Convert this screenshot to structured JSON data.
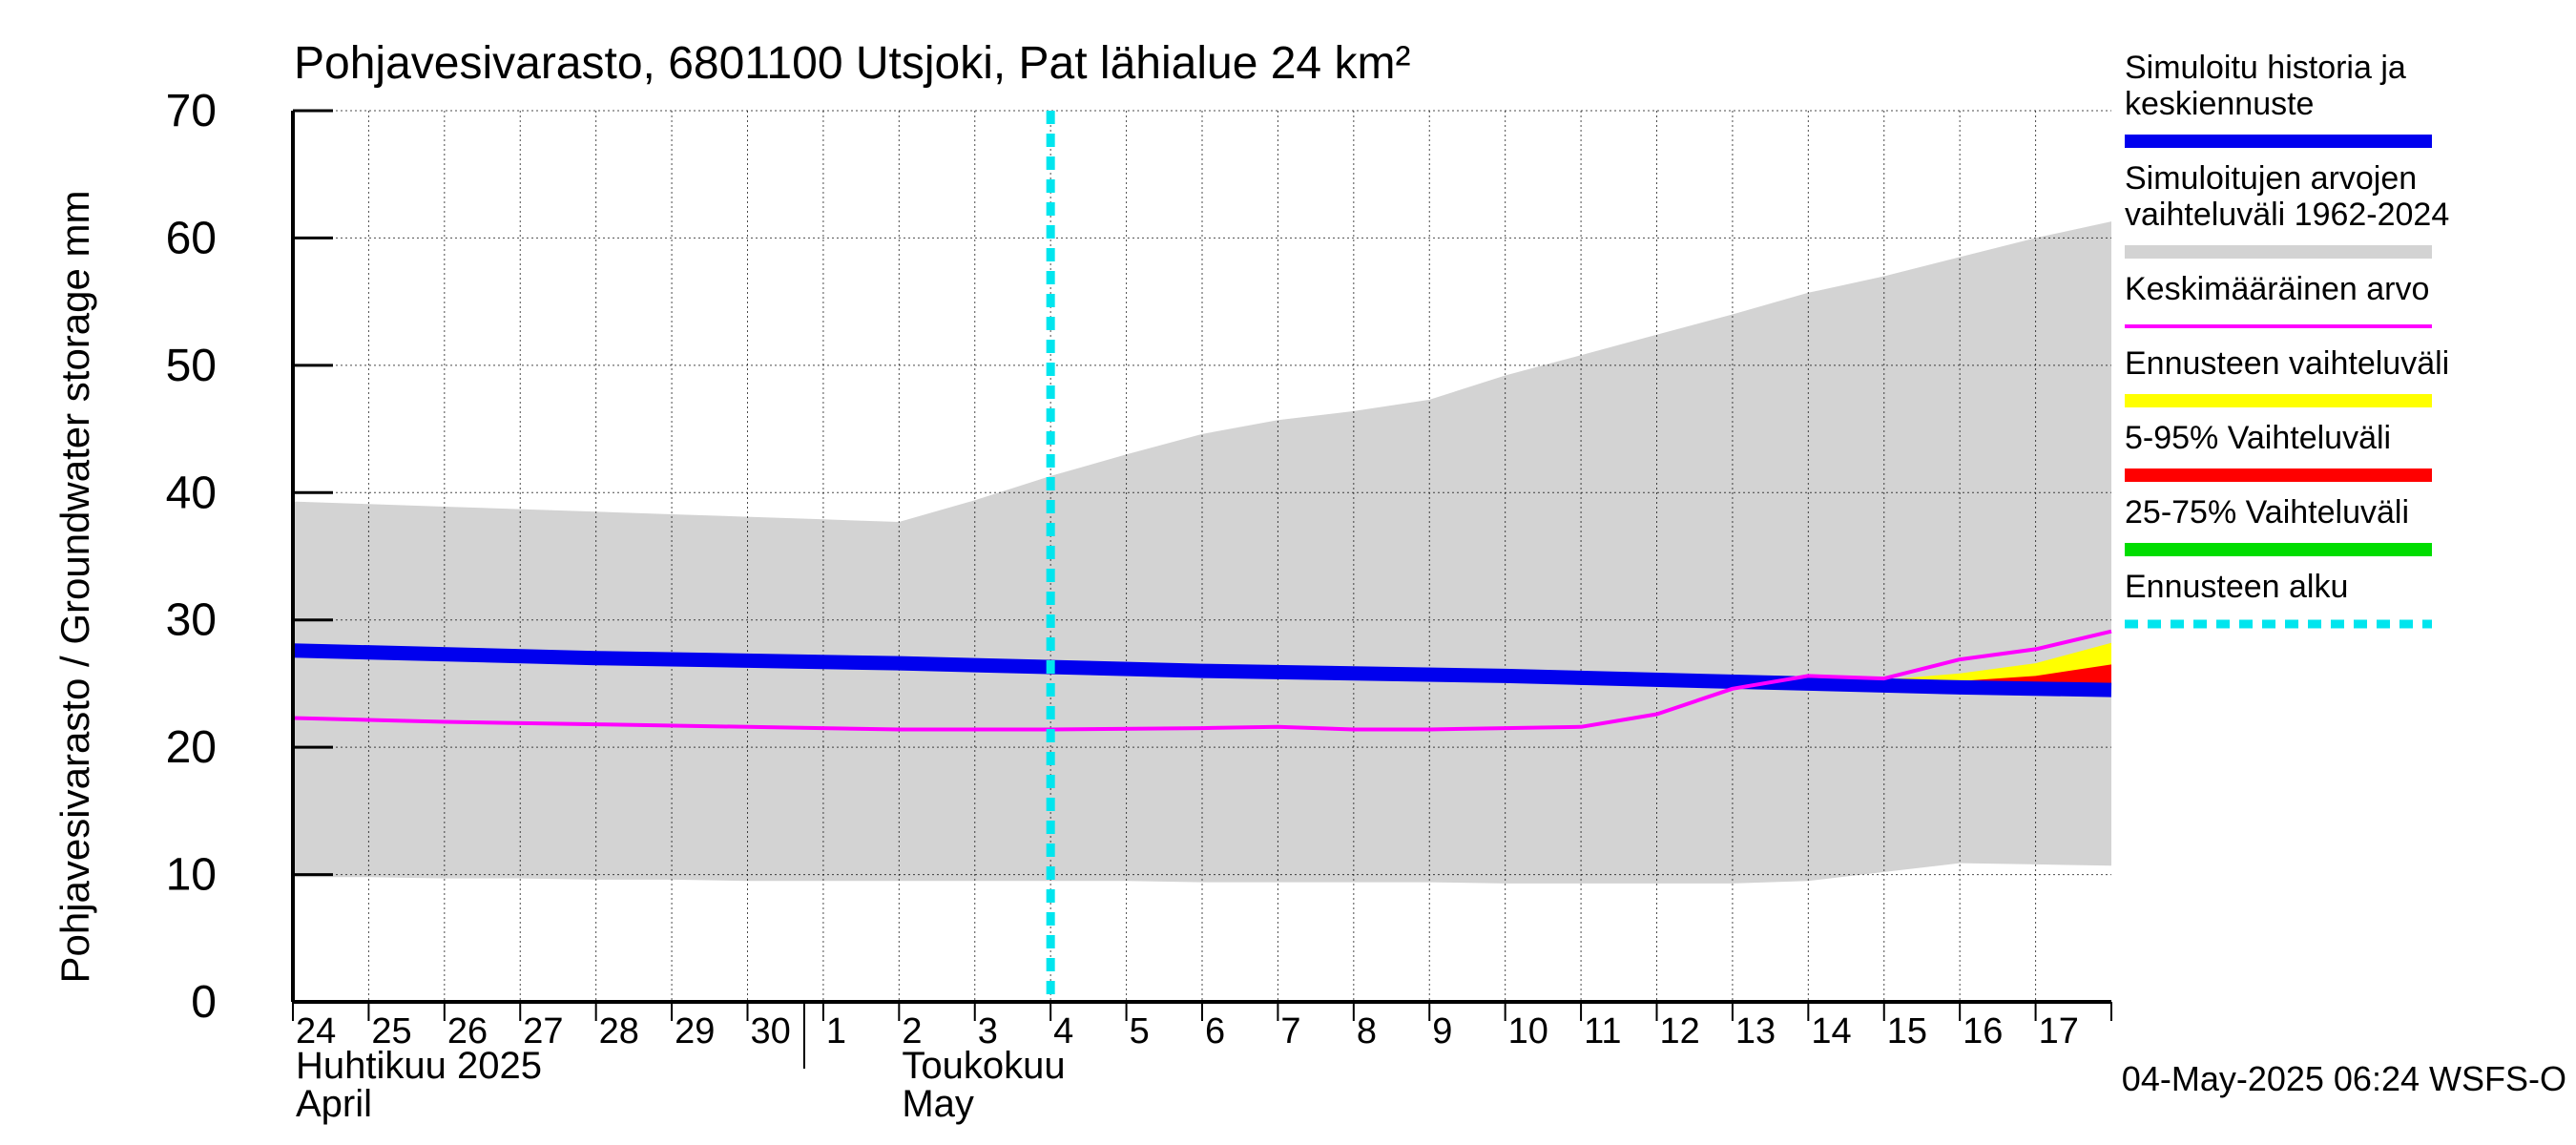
{
  "chart_data": {
    "type": "area",
    "title": "Pohjavesivarasto, 6801100 Utsjoki, Pat lähialue 24 km²",
    "ylabel": "Pohjavesivarasto / Groundwater storage   mm",
    "ylim": [
      0,
      70
    ],
    "yticks": [
      0,
      10,
      20,
      30,
      40,
      50,
      60,
      70
    ],
    "xlim": [
      0,
      24
    ],
    "x_tick_labels": [
      "24",
      "25",
      "26",
      "27",
      "28",
      "29",
      "30",
      "1",
      "2",
      "3",
      "4",
      "5",
      "6",
      "7",
      "8",
      "9",
      "10",
      "11",
      "12",
      "13",
      "14",
      "15",
      "16",
      "17"
    ],
    "month_labels": [
      {
        "fi": "Huhtikuu  2025",
        "en": "April",
        "day": 0
      },
      {
        "fi": "Toukokuu",
        "en": "May",
        "day": 8
      }
    ],
    "grid": true,
    "forecast_start_day": 10,
    "series": [
      {
        "name": "Simuloitujen arvojen vaihteluväli 1962-2024",
        "color": "#d3d3d3",
        "x": [
          0,
          1,
          2,
          3,
          4,
          5,
          6,
          7,
          8,
          9,
          10,
          11,
          12,
          13,
          14,
          15,
          16,
          17,
          18,
          19,
          20,
          21,
          22,
          23,
          24
        ],
        "upper": [
          39.3,
          39.1,
          38.9,
          38.7,
          38.5,
          38.3,
          38.1,
          37.9,
          37.7,
          39.4,
          41.3,
          43.0,
          44.6,
          45.7,
          46.4,
          47.3,
          49.2,
          50.8,
          52.4,
          54.0,
          55.7,
          57.0,
          58.5,
          60.0,
          61.3
        ],
        "lower": [
          9.8,
          9.8,
          9.7,
          9.7,
          9.6,
          9.6,
          9.5,
          9.5,
          9.5,
          9.5,
          9.5,
          9.5,
          9.4,
          9.4,
          9.4,
          9.4,
          9.3,
          9.3,
          9.3,
          9.3,
          9.5,
          10.2,
          10.9,
          10.8,
          10.7
        ]
      },
      {
        "name": "Simuloitu historia ja keskiennuste",
        "color": "#0000ee",
        "x": [
          0,
          4,
          8,
          12,
          16,
          20,
          22,
          24
        ],
        "values": [
          27.6,
          27.0,
          26.6,
          26.0,
          25.6,
          25.0,
          24.7,
          24.5
        ]
      },
      {
        "name": "Keskimääräinen arvo",
        "color": "#ff00ff",
        "x": [
          0,
          2,
          4,
          6,
          8,
          10,
          12,
          13,
          14,
          15,
          16,
          17,
          18,
          19,
          20,
          21,
          22,
          23,
          24
        ],
        "values": [
          22.3,
          22.0,
          21.8,
          21.6,
          21.4,
          21.4,
          21.5,
          21.6,
          21.4,
          21.4,
          21.5,
          21.6,
          22.6,
          24.6,
          25.6,
          25.4,
          26.9,
          27.7,
          29.1
        ]
      },
      {
        "name": "Ennusteen vaihteluväli",
        "color": "#ffff00",
        "x": [
          21,
          22,
          23,
          24
        ],
        "upper": [
          25.3,
          25.8,
          26.6,
          28.2
        ],
        "lower": [
          24.9,
          24.8,
          24.7,
          24.5
        ]
      },
      {
        "name": "5-95% Vaihteluväli",
        "color": "#ff0000",
        "x": [
          21,
          22,
          23,
          24
        ],
        "upper": [
          25.0,
          25.2,
          25.6,
          26.5
        ],
        "lower": [
          24.9,
          24.8,
          24.7,
          24.5
        ]
      },
      {
        "name": "25-75% Vaihteluväli",
        "color": "#00dd00",
        "x": [
          21,
          22,
          23,
          24
        ],
        "upper": [
          24.95,
          24.85,
          24.75,
          24.6
        ],
        "lower": [
          24.9,
          24.8,
          24.7,
          24.5
        ]
      }
    ],
    "legend": [
      {
        "label": "Simuloitu historia ja\nkeskiennuste",
        "color": "#0000ee",
        "style": "thick"
      },
      {
        "label": "Simuloitujen arvojen\nvaihteluväli 1962-2024",
        "color": "#d3d3d3",
        "style": "thick"
      },
      {
        "label": "Keskimääräinen arvo",
        "color": "#ff00ff",
        "style": "thin"
      },
      {
        "label": "Ennusteen vaihteluväli",
        "color": "#ffff00",
        "style": "thick"
      },
      {
        "label": "5-95% Vaihteluväli",
        "color": "#ff0000",
        "style": "thick"
      },
      {
        "label": "25-75% Vaihteluväli",
        "color": "#00dd00",
        "style": "thick"
      },
      {
        "label": "Ennusteen alku",
        "color": "#00e5ee",
        "style": "dashed"
      }
    ],
    "legend_position": "right",
    "footer": "04-May-2025 06:24 WSFS-O"
  }
}
